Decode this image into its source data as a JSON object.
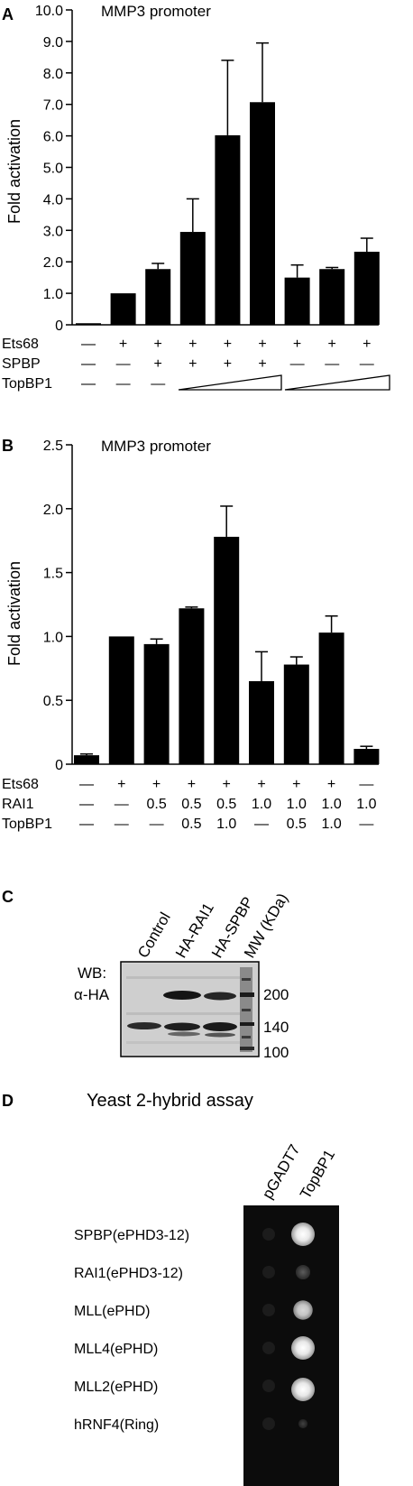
{
  "panel_a": {
    "label": "A",
    "chart_data": {
      "type": "bar",
      "title": "MMP3 promoter",
      "ylabel": "Fold activation",
      "ylim": [
        0,
        10
      ],
      "yticks": [
        "0",
        "1.0",
        "2.0",
        "3.0",
        "4.0",
        "5.0",
        "6.0",
        "7.0",
        "8.0",
        "9.0",
        "10.0"
      ],
      "values": [
        0.05,
        1.0,
        1.77,
        2.95,
        6.02,
        7.07,
        1.5,
        1.77,
        2.32
      ],
      "errors": [
        0,
        0,
        0.18,
        1.05,
        2.38,
        1.88,
        0.4,
        0.05,
        0.43
      ],
      "conditions": [
        {
          "label": "Ets68",
          "values": [
            "—",
            "+",
            "+",
            "+",
            "+",
            "+",
            "+",
            "+",
            "+"
          ]
        },
        {
          "label": "SPBP",
          "values": [
            "—",
            "—",
            "+",
            "+",
            "+",
            "+",
            "—",
            "—",
            "—"
          ]
        },
        {
          "label": "TopBP1",
          "values": [
            "—",
            "—",
            "—",
            "",
            "",
            "",
            "",
            "",
            ""
          ]
        }
      ]
    }
  },
  "panel_b": {
    "label": "B",
    "chart_data": {
      "type": "bar",
      "title": "MMP3 promoter",
      "ylabel": "Fold activation",
      "ylim": [
        0,
        2.5
      ],
      "yticks": [
        "0",
        "0.5",
        "1.0",
        "1.5",
        "2.0",
        "2.5"
      ],
      "values": [
        0.07,
        1.0,
        0.94,
        1.22,
        1.78,
        0.65,
        0.78,
        1.03,
        0.12
      ],
      "errors": [
        0.01,
        0,
        0.04,
        0.01,
        0.24,
        0.23,
        0.06,
        0.13,
        0.02
      ],
      "conditions": [
        {
          "label": "Ets68",
          "values": [
            "—",
            "+",
            "+",
            "+",
            "+",
            "+",
            "+",
            "+",
            "—"
          ]
        },
        {
          "label": "RAI1",
          "values": [
            "—",
            "—",
            "0.5",
            "0.5",
            "0.5",
            "1.0",
            "1.0",
            "1.0",
            "1.0"
          ]
        },
        {
          "label": "TopBP1",
          "values": [
            "—",
            "—",
            "—",
            "0.5",
            "1.0",
            "—",
            "0.5",
            "1.0",
            "—"
          ]
        }
      ]
    }
  },
  "panel_c": {
    "label": "C",
    "wb_label_1": "WB:",
    "wb_label_2": "α-HA",
    "lanes": [
      "Control",
      "HA-RAI1",
      "HA-SPBP",
      "MW (KDa)"
    ],
    "mw_markers": [
      "200",
      "140",
      "100"
    ]
  },
  "panel_d": {
    "label": "D",
    "title": "Yeast 2-hybrid assay",
    "columns": [
      "pGADT7",
      "TopBP1"
    ],
    "rows": [
      "SPBP(ePHD3-12)",
      "RAI1(ePHD3-12)",
      "MLL(ePHD)",
      "MLL4(ePHD)",
      "MLL2(ePHD)",
      "hRNF4(Ring)"
    ],
    "topbp1_growth": [
      1.0,
      0.45,
      0.75,
      1.0,
      1.0,
      0.12
    ]
  }
}
